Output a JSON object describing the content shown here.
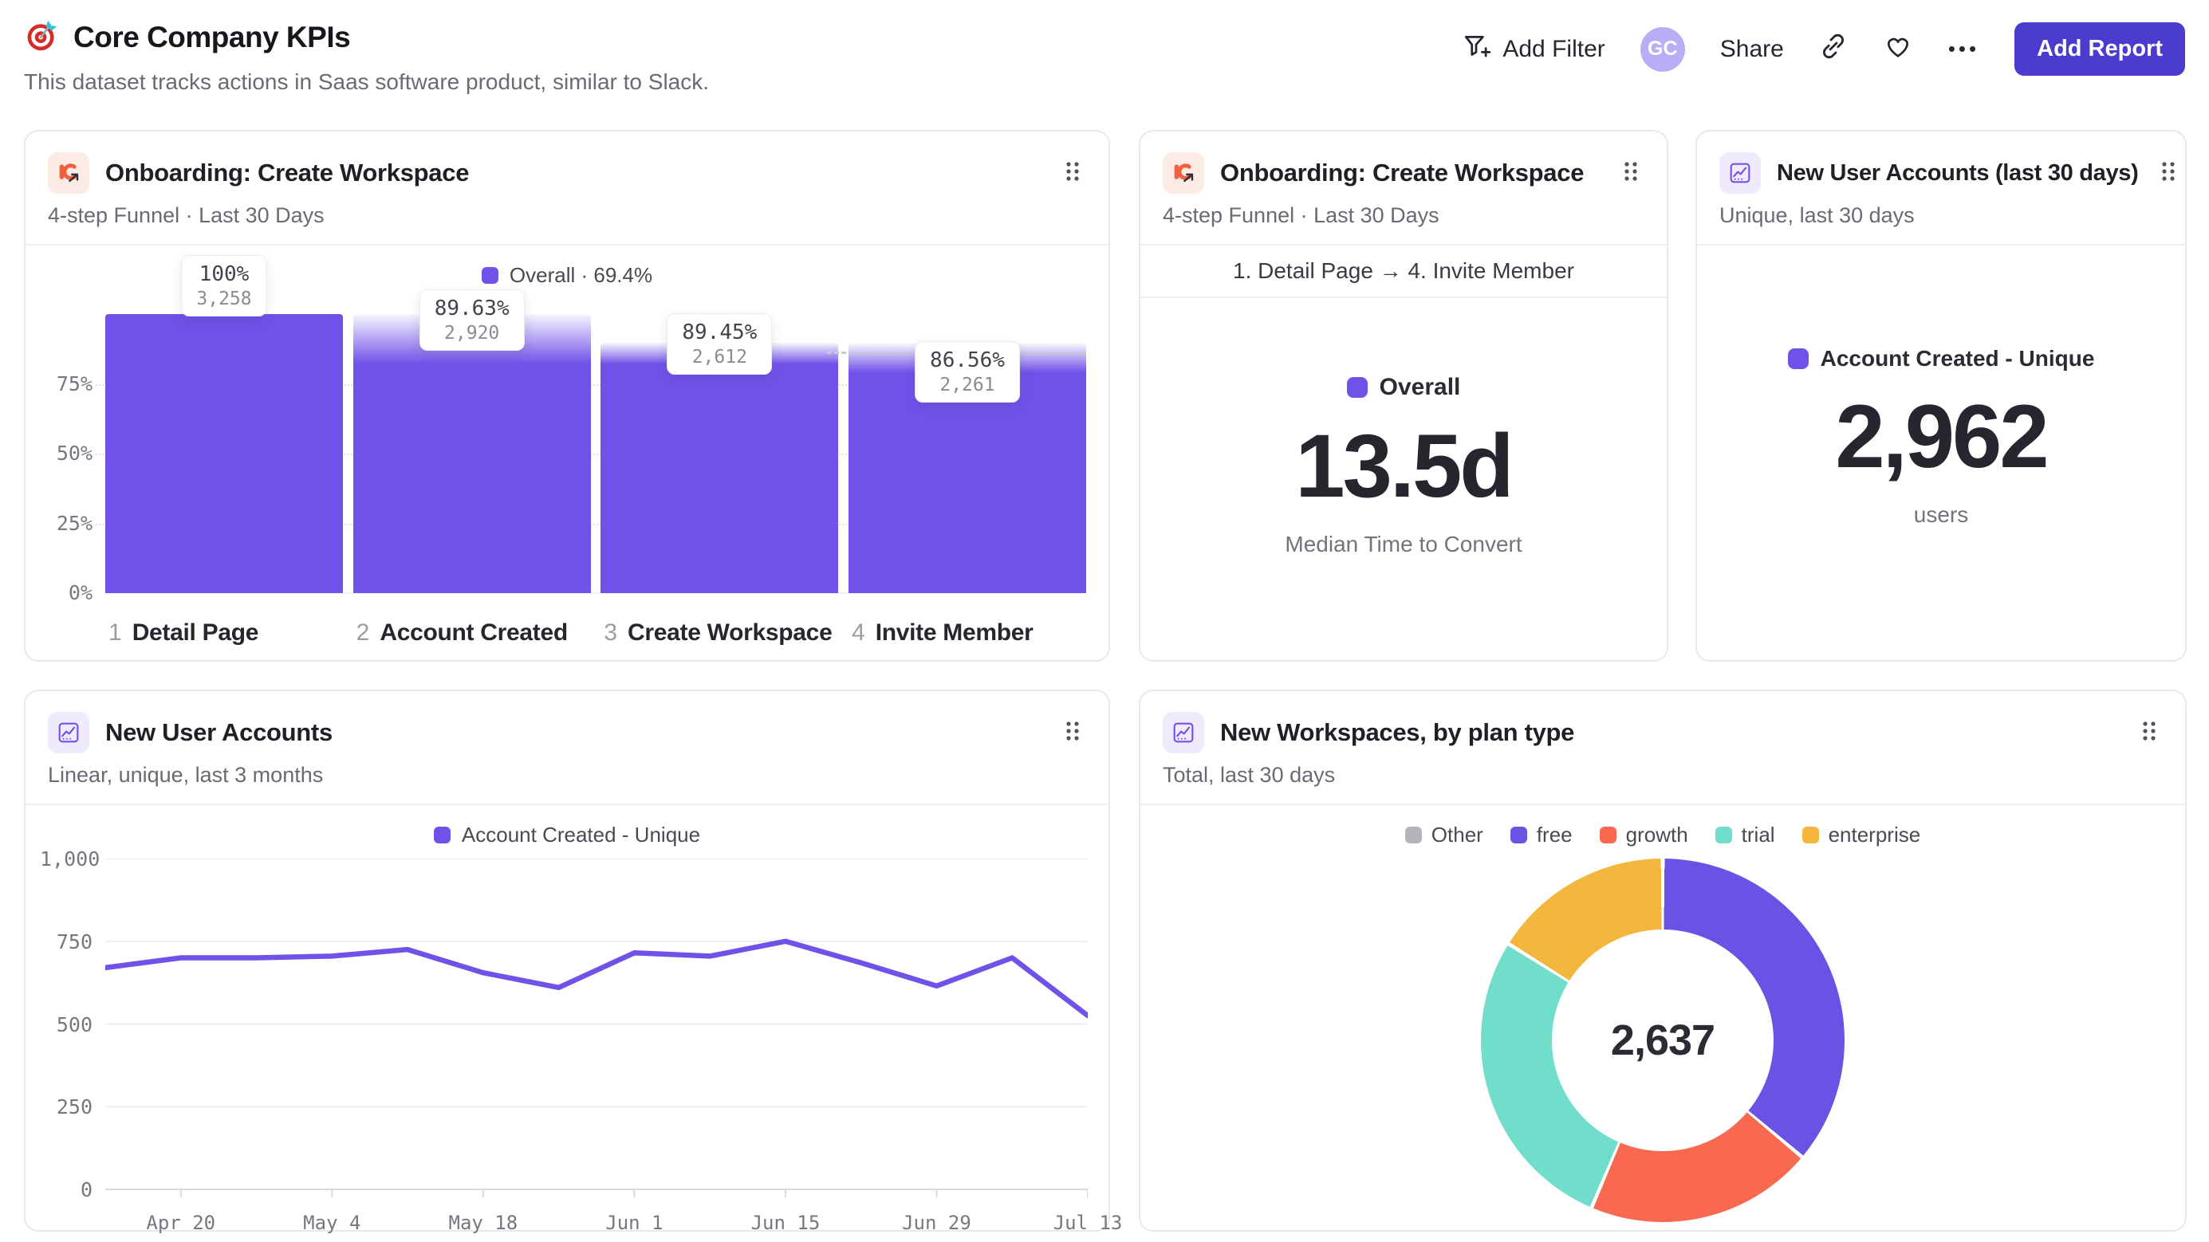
{
  "theme": {
    "accent_purple": "#7152E8",
    "button_indigo": "#4C3BCF",
    "legend_gray": "#B4B4BC"
  },
  "header": {
    "title": "Core Company KPIs",
    "subtitle": "This dataset tracks actions in Saas software product, similar to Slack.",
    "add_filter": "Add Filter",
    "avatar_initials": "GC",
    "share": "Share",
    "more": "•••",
    "add_report": "Add Report"
  },
  "cards": {
    "funnel": {
      "title": "Onboarding: Create Workspace",
      "subtitle": "4-step Funnel · Last 30 Days",
      "legend_label": "Overall · 69.4%"
    },
    "median": {
      "title": "Onboarding: Create Workspace",
      "subtitle": "4-step Funnel · Last 30 Days",
      "range": "1. Detail Page → 4. Invite Member",
      "legend_label": "Overall",
      "value": "13.5d",
      "caption": "Median Time to Convert"
    },
    "users30": {
      "title": "New User Accounts (last 30 days)",
      "subtitle": "Unique, last 30 days",
      "legend_label": "Account Created - Unique",
      "value": "2,962",
      "caption": "users"
    },
    "line": {
      "title": "New User Accounts",
      "subtitle": "Linear, unique, last 3 months",
      "legend_label": "Account Created - Unique"
    },
    "donut": {
      "title": "New Workspaces, by plan type",
      "subtitle": "Total, last 30 days",
      "center_value": "2,637"
    }
  },
  "chart_data": [
    {
      "id": "onboarding-funnel",
      "type": "bar",
      "title": "Onboarding: Create Workspace",
      "subtitle": "4-step Funnel · Last 30 Days",
      "legend": [
        {
          "label": "Overall · 69.4%",
          "color": "#7152E8"
        }
      ],
      "overall_conversion": "69.4%",
      "bar_color": "#7152E8",
      "categories": [
        "Detail Page",
        "Account Created",
        "Create Workspace",
        "Invite Member"
      ],
      "steps": [
        {
          "num": "1",
          "label": "Detail Page",
          "pct": 100,
          "pct_label": "100%",
          "count": 3258,
          "count_label": "3,258"
        },
        {
          "num": "2",
          "label": "Account Created",
          "pct": 89.63,
          "pct_label": "89.63%",
          "count": 2920,
          "count_label": "2,920"
        },
        {
          "num": "3",
          "label": "Create Workspace",
          "pct": 89.45,
          "pct_label": "89.45%",
          "count": 2612,
          "count_label": "2,612"
        },
        {
          "num": "4",
          "label": "Invite Member",
          "pct": 86.56,
          "pct_label": "86.56%",
          "count": 2261,
          "count_label": "2,261"
        }
      ],
      "y_ticks": [
        {
          "pct": 75,
          "label": "75%"
        },
        {
          "pct": 50,
          "label": "50%"
        },
        {
          "pct": 25,
          "label": "25%"
        },
        {
          "pct": 0,
          "label": "0%"
        }
      ],
      "ylim": [
        0,
        106
      ],
      "grid": true
    },
    {
      "id": "new-user-accounts-weekly",
      "type": "line",
      "title": "New User Accounts",
      "subtitle": "Linear, unique, last 3 months",
      "x": [
        "Apr 13",
        "Apr 20",
        "Apr 27",
        "May 4",
        "May 11",
        "May 18",
        "May 25",
        "Jun 1",
        "Jun 8",
        "Jun 15",
        "Jun 22",
        "Jun 29",
        "Jul 6",
        "Jul 13"
      ],
      "series": [
        {
          "name": "Account Created - Unique",
          "color": "#7152E8",
          "values": [
            670,
            700,
            700,
            705,
            725,
            655,
            610,
            715,
            705,
            750,
            685,
            615,
            700,
            525
          ]
        }
      ],
      "x_tick_labels": [
        "Apr 20",
        "May 4",
        "May 18",
        "Jun 1",
        "Jun 15",
        "Jun 29",
        "Jul 13"
      ],
      "y_ticks": [
        0,
        250,
        500,
        750,
        1000
      ],
      "y_tick_labels": [
        "0",
        "250",
        "500",
        "750",
        "1,000"
      ],
      "ylim": [
        0,
        1000
      ],
      "grid": true,
      "legend_position": "top"
    },
    {
      "id": "new-workspaces-by-plan",
      "type": "pie",
      "title": "New Workspaces, by plan type",
      "subtitle": "Total, last 30 days",
      "total": 2637,
      "total_label": "2,637",
      "legend_position": "top",
      "slices": [
        {
          "label": "Other",
          "color": "#B4B4BC",
          "pct": 0,
          "value": 0
        },
        {
          "label": "free",
          "color": "#6C52E4",
          "pct": 36.1,
          "value": 952
        },
        {
          "label": "growth",
          "color": "#F8694F",
          "pct": 20.3,
          "value": 535
        },
        {
          "label": "trial",
          "color": "#70DECB",
          "pct": 27.5,
          "value": 725
        },
        {
          "label": "enterprise",
          "color": "#F4B63C",
          "pct": 16.1,
          "value": 425
        }
      ]
    },
    {
      "id": "median-time-to-convert",
      "type": "table",
      "title": "Onboarding: Create Workspace",
      "metric": "Median Time to Convert",
      "range": "1. Detail Page → 4. Invite Member",
      "series_name": "Overall",
      "value_label": "13.5d",
      "value_numeric": 13.5,
      "unit": "days"
    },
    {
      "id": "new-user-accounts-total",
      "type": "table",
      "title": "New User Accounts (last 30 days)",
      "metric": "Account Created - Unique",
      "value_label": "2,962",
      "value_numeric": 2962,
      "unit": "users"
    }
  ]
}
